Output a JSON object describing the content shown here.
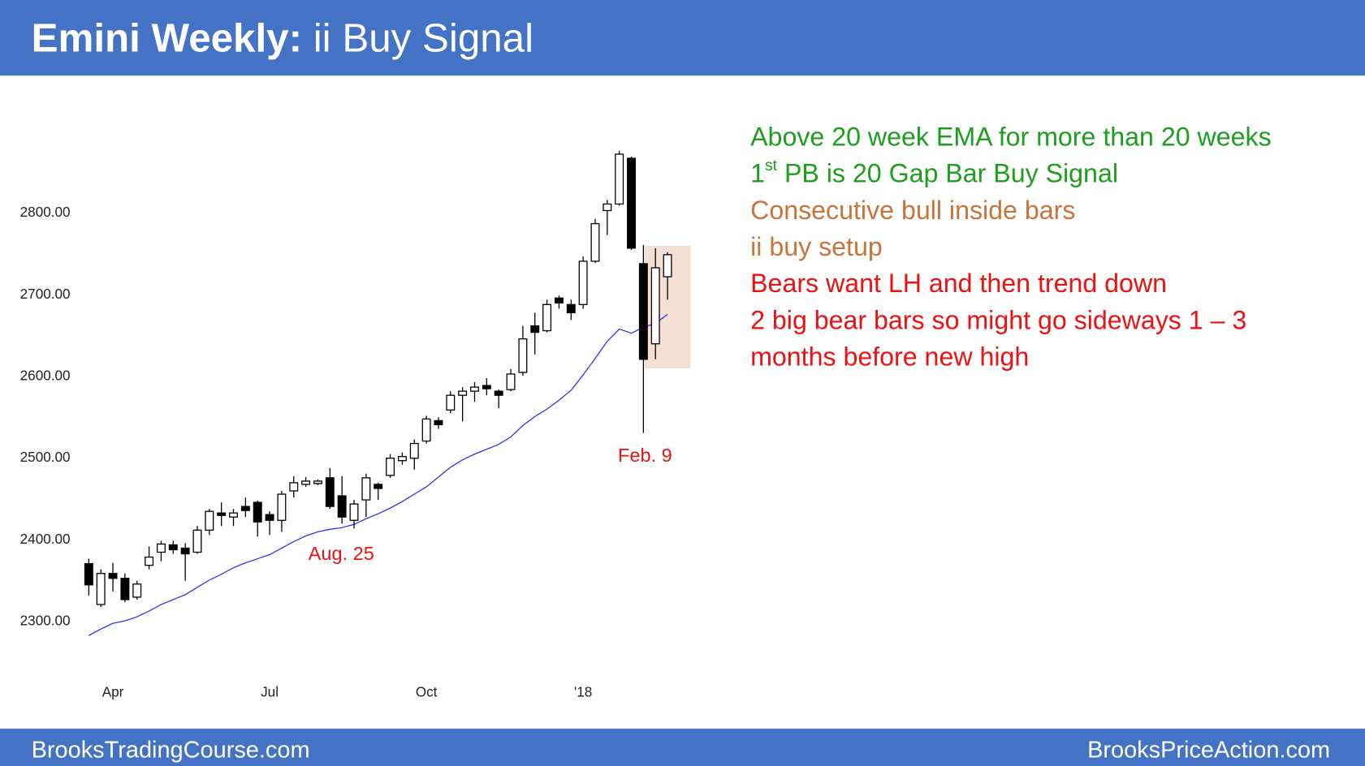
{
  "header": {
    "title_bold": "Emini Weekly:",
    "title_rest": " ii Buy Signal",
    "color": "#4472c4"
  },
  "footer": {
    "left": "BrooksTradingCourse.com",
    "right": "BrooksPriceAction.com"
  },
  "chart_data": {
    "type": "candlestick",
    "categories": [
      null,
      null,
      "Apr",
      null,
      null,
      null,
      null,
      null,
      null,
      null,
      null,
      null,
      null,
      null,
      null,
      "Jul",
      null,
      null,
      null,
      null,
      null,
      null,
      null,
      null,
      null,
      null,
      null,
      null,
      "Oct",
      null,
      null,
      null,
      null,
      null,
      null,
      null,
      null,
      null,
      null,
      null,
      null,
      "'18",
      null,
      null,
      null,
      null,
      null,
      null,
      null
    ],
    "open": [
      2371,
      2321,
      2359,
      2353,
      2330,
      2369,
      2385,
      2394,
      2390,
      2385,
      2412,
      2433,
      2428,
      2441,
      2446,
      2431,
      2424,
      2460,
      2468,
      2469,
      2476,
      2454,
      2424,
      2449,
      2468,
      2479,
      2497,
      2500,
      2521,
      2546,
      2559,
      2577,
      2582,
      2589,
      2582,
      2584,
      2605,
      2662,
      2656,
      2696,
      2688,
      2688,
      2741,
      2803,
      2811,
      2867,
      2738,
      2640,
      2722
    ],
    "high": [
      2377,
      2364,
      2372,
      2359,
      2350,
      2392,
      2399,
      2399,
      2396,
      2417,
      2438,
      2446,
      2438,
      2452,
      2448,
      2435,
      2460,
      2478,
      2477,
      2474,
      2488,
      2478,
      2449,
      2481,
      2470,
      2505,
      2507,
      2523,
      2552,
      2550,
      2582,
      2587,
      2593,
      2598,
      2584,
      2609,
      2662,
      2678,
      2694,
      2699,
      2694,
      2747,
      2793,
      2816,
      2876,
      2869,
      2761,
      2757,
      2752
    ],
    "low": [
      2332,
      2318,
      2337,
      2324,
      2327,
      2364,
      2374,
      2383,
      2350,
      2383,
      2406,
      2417,
      2417,
      2428,
      2404,
      2406,
      2410,
      2452,
      2465,
      2467,
      2438,
      2420,
      2414,
      2428,
      2449,
      2476,
      2492,
      2486,
      2518,
      2536,
      2555,
      2545,
      2569,
      2577,
      2561,
      2582,
      2601,
      2627,
      2654,
      2683,
      2669,
      2683,
      2739,
      2773,
      2809,
      2755,
      2531,
      2621,
      2694
    ],
    "close": [
      2345,
      2359,
      2353,
      2327,
      2346,
      2379,
      2395,
      2388,
      2383,
      2412,
      2435,
      2430,
      2433,
      2436,
      2422,
      2424,
      2456,
      2470,
      2472,
      2472,
      2441,
      2428,
      2444,
      2476,
      2463,
      2500,
      2502,
      2518,
      2548,
      2541,
      2577,
      2582,
      2587,
      2585,
      2577,
      2603,
      2646,
      2654,
      2688,
      2690,
      2678,
      2741,
      2787,
      2811,
      2872,
      2757,
      2621,
      2733,
      2749
    ],
    "lines": [
      {
        "color": "#3333ee",
        "values": [
          2283,
          2291,
          2298,
          2301,
          2306,
          2313,
          2321,
          2327,
          2333,
          2342,
          2351,
          2358,
          2366,
          2372,
          2377,
          2382,
          2390,
          2398,
          2405,
          2410,
          2413,
          2415,
          2419,
          2426,
          2432,
          2439,
          2447,
          2456,
          2465,
          2477,
          2489,
          2498,
          2505,
          2511,
          2517,
          2526,
          2540,
          2551,
          2560,
          2571,
          2583,
          2602,
          2622,
          2643,
          2658,
          2653,
          2660,
          2665,
          2676
        ]
      }
    ],
    "ylim": [
      2260,
      2900
    ],
    "yticks": [
      {
        "value": 2300,
        "label": "2300.00"
      },
      {
        "value": 2400,
        "label": "2400.00"
      },
      {
        "value": 2500,
        "label": "2500.00"
      },
      {
        "value": 2600,
        "label": "2600.00"
      },
      {
        "value": 2700,
        "label": "2700.00"
      },
      {
        "value": 2800,
        "label": "2800.00"
      }
    ],
    "highlight": {
      "ylim": [
        2610,
        2760
      ],
      "color": "#f2dccf"
    },
    "annotations": [
      "Aug. 25",
      "Feb. 9"
    ]
  },
  "notes": [
    {
      "text": "Above 20 week EMA for more than 20 weeks",
      "color": "#1e9e1e"
    },
    {
      "text": "1",
      "sup": "st",
      "rest": " PB is 20 Gap Bar Buy Signal",
      "color": "#1e9e1e"
    },
    {
      "text": "Consecutive bull inside bars",
      "color": "#c8743a"
    },
    {
      "text": "ii buy setup",
      "color": "#c8743a"
    },
    {
      "text": "Bears want LH and then trend down",
      "color": "#ee1111"
    },
    {
      "text": "2 big bear bars so might go sideways 1 – 3",
      "color": "#ee1111"
    },
    {
      "text": "months before new high",
      "color": "#ee1111"
    }
  ]
}
